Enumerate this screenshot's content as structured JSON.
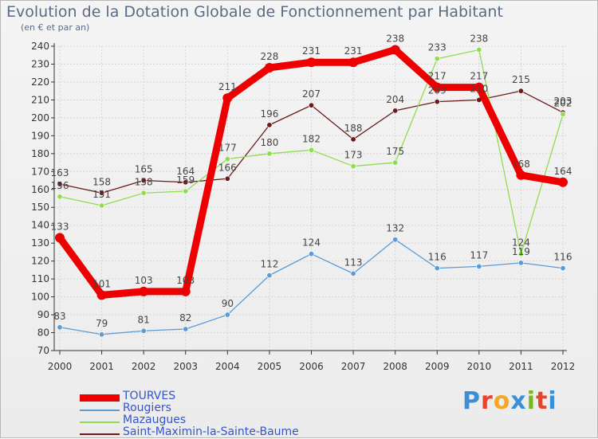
{
  "title": "Evolution de la Dotation Globale de Fonctionnement par Habitant",
  "subtitle": "(en € et par an)",
  "logo": {
    "text": "Proxiti",
    "colors": [
      "#3b8fd6",
      "#e8442a",
      "#f5a623",
      "#3b8fd6",
      "#77b81a",
      "#e8442a",
      "#3b8fd6"
    ]
  },
  "chart_data": {
    "type": "line",
    "x": [
      "2000",
      "2001",
      "2002",
      "2003",
      "2004",
      "2005",
      "2006",
      "2007",
      "2008",
      "2009",
      "2010",
      "2011",
      "2012"
    ],
    "ylim": [
      70,
      240
    ],
    "yticks": [
      70,
      80,
      90,
      100,
      110,
      120,
      130,
      140,
      150,
      160,
      170,
      180,
      190,
      200,
      210,
      220,
      230,
      240
    ],
    "grid": true,
    "series": [
      {
        "name": "TOURVES",
        "color": "#ee0000",
        "values": [
          133,
          101,
          103,
          103,
          211,
          228,
          231,
          231,
          238,
          217,
          217,
          168,
          164
        ]
      },
      {
        "name": "Rougiers",
        "color": "#5b9ad5",
        "values": [
          83,
          79,
          81,
          82,
          90,
          112,
          124,
          113,
          132,
          116,
          117,
          119,
          116
        ]
      },
      {
        "name": "Mazaugues",
        "color": "#8fdc4f",
        "values": [
          156,
          151,
          158,
          159,
          177,
          180,
          182,
          173,
          175,
          233,
          238,
          124,
          202
        ]
      },
      {
        "name": "Saint-Maximin-la-Sainte-Baume",
        "color": "#6b1a1a",
        "values": [
          163,
          158,
          165,
          164,
          166,
          196,
          207,
          188,
          204,
          209,
          210,
          215,
          203
        ]
      }
    ]
  }
}
